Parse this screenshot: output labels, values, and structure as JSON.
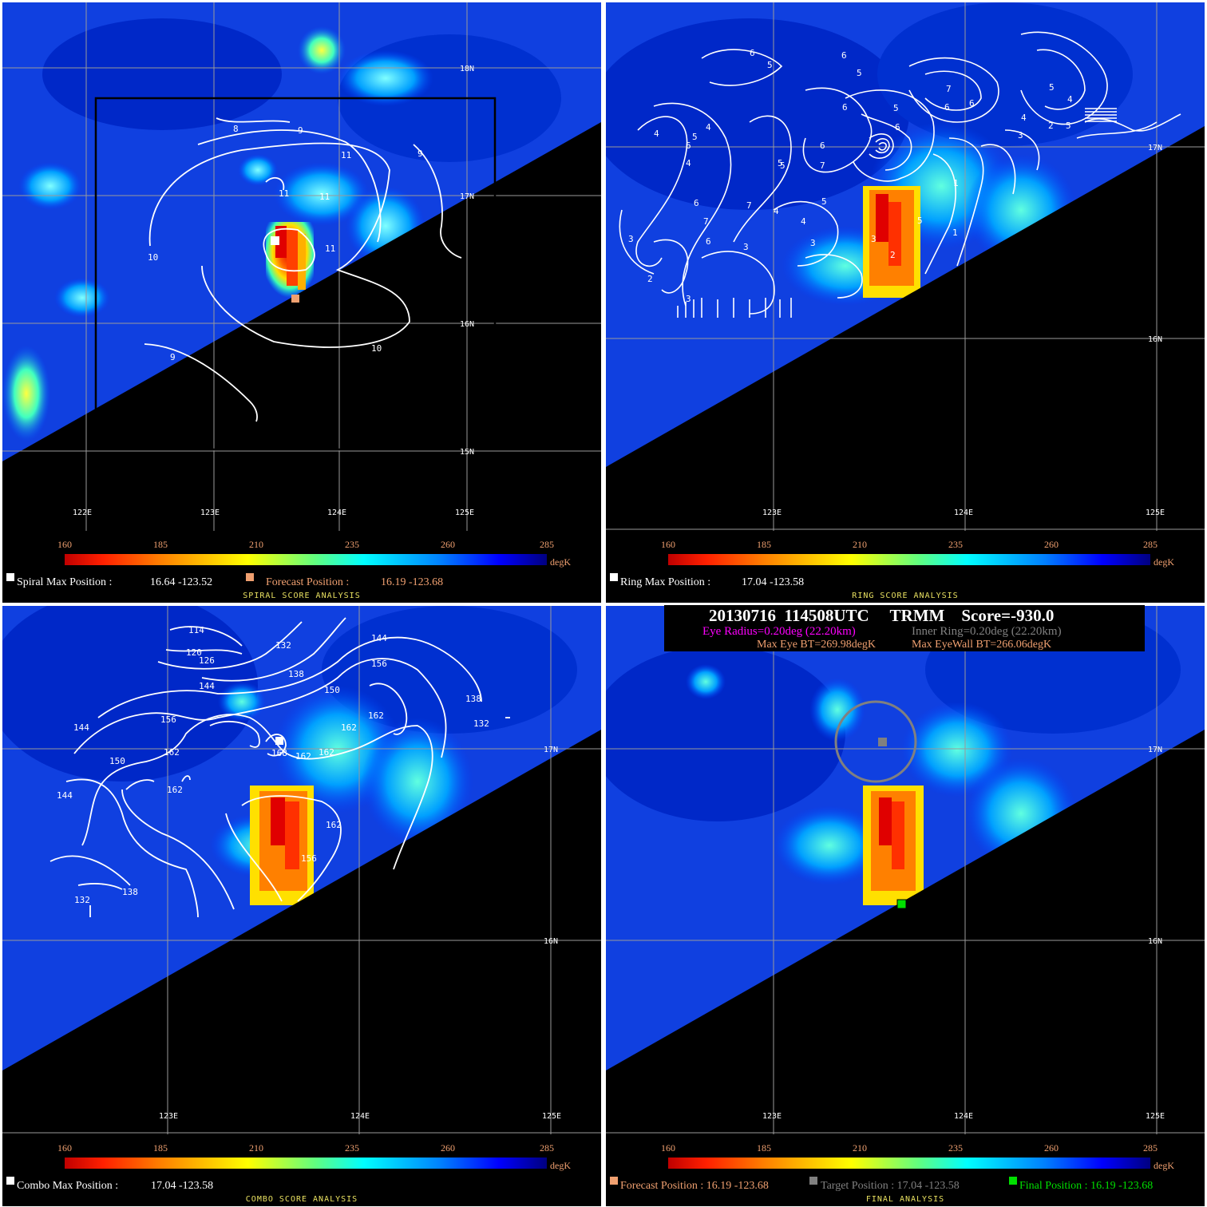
{
  "colorbar": {
    "ticks": [
      "160",
      "185",
      "210",
      "235",
      "260",
      "285"
    ],
    "unit": "degK"
  },
  "panels": {
    "spiral": {
      "title": "SPIRAL SCORE ANALYSIS",
      "max_label": "Spiral Max Position :",
      "max_value": "16.64 -123.52",
      "forecast_label": "Forecast Position :",
      "forecast_value": "16.19 -123.68",
      "lat_labels": [
        "18N",
        "17N",
        "16N",
        "15N"
      ],
      "lon_labels": [
        "122E",
        "123E",
        "124E",
        "125E"
      ],
      "contour_labels": [
        "8",
        "9",
        "9",
        "11",
        "11",
        "11",
        "11",
        "10",
        "10",
        "9"
      ]
    },
    "ring": {
      "title": "RING SCORE ANALYSIS",
      "max_label": "Ring Max Position :",
      "max_value": "17.04 -123.58",
      "lat_labels": [
        "17N",
        "16N"
      ],
      "lon_labels": [
        "123E",
        "124E",
        "125E"
      ],
      "contour_labels": [
        "3",
        "2",
        "4",
        "3",
        "4",
        "5",
        "6",
        "5",
        "6",
        "6",
        "5",
        "6",
        "7",
        "7",
        "6",
        "6",
        "5",
        "6",
        "5",
        "4",
        "4",
        "5",
        "6",
        "4",
        "7",
        "6",
        "3",
        "4",
        "5",
        "5",
        "7",
        "3",
        "4",
        "6",
        "5",
        "1",
        "2",
        "3",
        "3",
        "5",
        "2",
        "1"
      ]
    },
    "combo": {
      "title": "COMBO SCORE ANALYSIS",
      "max_label": "Combo Max Position :",
      "max_value": "17.04 -123.58",
      "lat_labels": [
        "17N",
        "16N"
      ],
      "lon_labels": [
        "123E",
        "124E",
        "125E"
      ],
      "contour_labels": [
        "114",
        "120",
        "126",
        "132",
        "144",
        "138",
        "156",
        "150",
        "162",
        "138",
        "132",
        "144",
        "156",
        "162",
        "162",
        "162",
        "168",
        "162",
        "150",
        "144",
        "162",
        "162",
        "144",
        "138",
        "132",
        "156"
      ]
    },
    "final": {
      "title": "FINAL ANALYSIS",
      "header": {
        "line1": "20130716  114508UTC     TRMM    Score=-930.0",
        "eye_radius": "Eye Radius=0.20deg (22.20km)",
        "inner_ring": "Inner Ring=0.20deg (22.20km)",
        "max_eye": "Max Eye BT=269.98degK",
        "max_eyewall": "Max EyeWall BT=266.06degK"
      },
      "forecast_label": "Forecast Position : 16.19 -123.68",
      "target_label": "Target Position : 17.04 -123.58",
      "final_label": "Final Position : 16.19 -123.68",
      "lat_labels": [
        "17N",
        "16N"
      ],
      "lon_labels": [
        "123E",
        "124E",
        "125E"
      ]
    }
  },
  "colors": {
    "forecast": "#f0a070",
    "target": "#808080",
    "final": "#00e000",
    "eye_radius": "#ff00ff",
    "title": "#e8e060"
  }
}
